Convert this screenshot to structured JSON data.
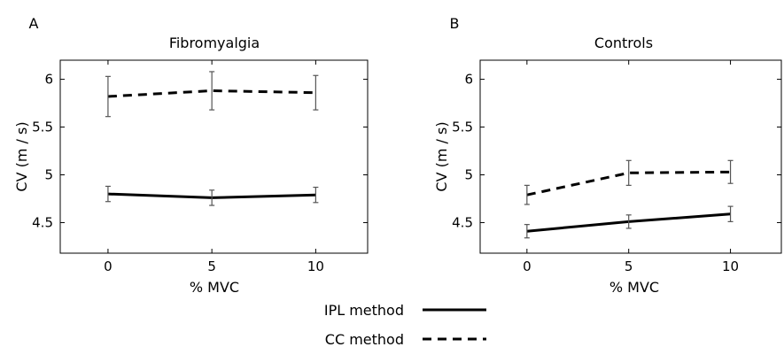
{
  "chart_data": [
    {
      "type": "line",
      "panel_label": "A",
      "title": "Fibromyalgia",
      "xlabel": "% MVC",
      "ylabel": "CV (m / s)",
      "x": [
        0,
        5,
        10
      ],
      "xlim": [
        -2.3,
        12.5
      ],
      "ylim": [
        4.18,
        6.2
      ],
      "xticks": [
        "0",
        "5",
        "10"
      ],
      "yticks": [
        "4.5",
        "5",
        "5.5",
        "6"
      ],
      "series": [
        {
          "name": "IPL method",
          "style": "solid",
          "values": [
            4.8,
            4.76,
            4.79
          ],
          "errors": [
            0.08,
            0.08,
            0.08
          ]
        },
        {
          "name": "CC method",
          "style": "dashed",
          "values": [
            5.82,
            5.88,
            5.86
          ],
          "errors": [
            0.21,
            0.2,
            0.18
          ]
        }
      ]
    },
    {
      "type": "line",
      "panel_label": "B",
      "title": "Controls",
      "xlabel": "% MVC",
      "ylabel": "CV (m / s)",
      "x": [
        0,
        5,
        10
      ],
      "xlim": [
        -2.3,
        12.5
      ],
      "ylim": [
        4.18,
        6.2
      ],
      "xticks": [
        "0",
        "5",
        "10"
      ],
      "yticks": [
        "4.5",
        "5",
        "5.5",
        "6"
      ],
      "series": [
        {
          "name": "IPL method",
          "style": "solid",
          "values": [
            4.41,
            4.51,
            4.59
          ],
          "errors": [
            0.07,
            0.07,
            0.08
          ]
        },
        {
          "name": "CC method",
          "style": "dashed",
          "values": [
            4.79,
            5.02,
            5.03
          ],
          "errors": [
            0.1,
            0.13,
            0.12
          ]
        }
      ]
    }
  ],
  "legend": {
    "placement": "bottom-center",
    "entries": [
      {
        "label": "IPL method",
        "style": "solid"
      },
      {
        "label": "CC method",
        "style": "dashed"
      }
    ]
  }
}
